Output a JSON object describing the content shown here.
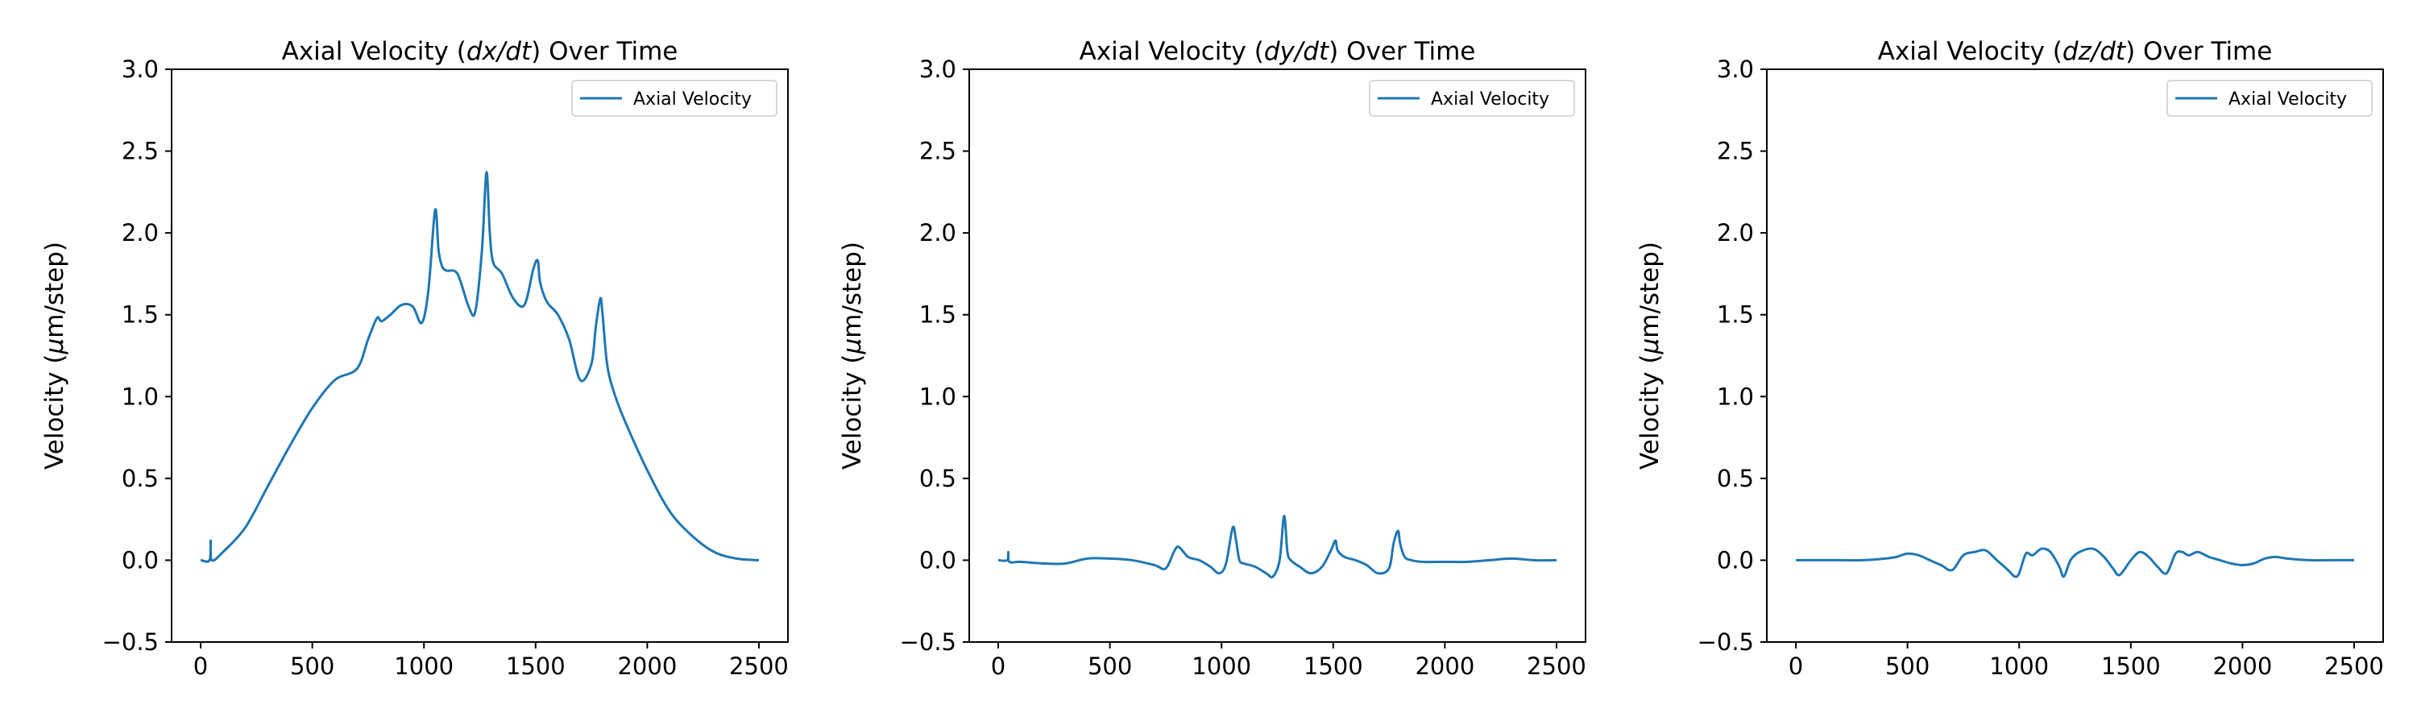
{
  "chart_data": [
    {
      "type": "line",
      "title": "Axial Velocity (dx/dt) Over Time",
      "title_parts": [
        "Axial Velocity (",
        "dx/dt",
        ") Over Time"
      ],
      "xlabel": "",
      "ylabel": "Velocity (μm/step)",
      "ylabel_parts": [
        "Velocity (",
        "μ",
        "m/step)"
      ],
      "xlim": [
        -130,
        2630
      ],
      "ylim": [
        -0.5,
        3.0
      ],
      "xticks": [
        0,
        500,
        1000,
        1500,
        2000,
        2500
      ],
      "yticks": [
        -0.5,
        0.0,
        0.5,
        1.0,
        1.5,
        2.0,
        2.5,
        3.0
      ],
      "xtick_labels": [
        "0",
        "500",
        "1000",
        "1500",
        "2000",
        "2500"
      ],
      "ytick_labels": [
        "−0.5",
        "0.0",
        "0.5",
        "1.0",
        "1.5",
        "2.0",
        "2.5",
        "3.0"
      ],
      "grid": false,
      "legend": "top-right",
      "series": [
        {
          "name": "Axial Velocity",
          "color": "#1f77b4",
          "x": [
            0,
            40,
            45,
            50,
            100,
            200,
            300,
            400,
            500,
            600,
            700,
            750,
            790,
            810,
            850,
            900,
            950,
            990,
            1020,
            1050,
            1065,
            1080,
            1100,
            1150,
            1200,
            1230,
            1260,
            1280,
            1295,
            1310,
            1350,
            1400,
            1450,
            1490,
            1510,
            1520,
            1550,
            1600,
            1650,
            1700,
            1750,
            1770,
            1790,
            1800,
            1820,
            1850,
            1900,
            2000,
            2100,
            2200,
            2300,
            2400,
            2500
          ],
          "y": [
            0.0,
            0.0,
            0.12,
            0.0,
            0.05,
            0.2,
            0.45,
            0.7,
            0.93,
            1.1,
            1.17,
            1.35,
            1.48,
            1.46,
            1.5,
            1.56,
            1.55,
            1.45,
            1.65,
            2.14,
            1.9,
            1.8,
            1.77,
            1.75,
            1.55,
            1.52,
            1.9,
            2.37,
            2.0,
            1.82,
            1.75,
            1.6,
            1.56,
            1.78,
            1.83,
            1.7,
            1.58,
            1.5,
            1.35,
            1.1,
            1.2,
            1.43,
            1.6,
            1.5,
            1.2,
            1.03,
            0.85,
            0.55,
            0.3,
            0.15,
            0.05,
            0.01,
            0.0
          ]
        }
      ]
    },
    {
      "type": "line",
      "title": "Axial Velocity (dy/dt) Over Time",
      "title_parts": [
        "Axial Velocity (",
        "dy/dt",
        ") Over Time"
      ],
      "xlabel": "",
      "ylabel": "Velocity (μm/step)",
      "ylabel_parts": [
        "Velocity (",
        "μ",
        "m/step)"
      ],
      "xlim": [
        -130,
        2630
      ],
      "ylim": [
        -0.5,
        3.0
      ],
      "xticks": [
        0,
        500,
        1000,
        1500,
        2000,
        2500
      ],
      "yticks": [
        -0.5,
        0.0,
        0.5,
        1.0,
        1.5,
        2.0,
        2.5,
        3.0
      ],
      "xtick_labels": [
        "0",
        "500",
        "1000",
        "1500",
        "2000",
        "2500"
      ],
      "ytick_labels": [
        "−0.5",
        "0.0",
        "0.5",
        "1.0",
        "1.5",
        "2.0",
        "2.5",
        "3.0"
      ],
      "grid": false,
      "legend": "top-right",
      "series": [
        {
          "name": "Axial Velocity",
          "color": "#1f77b4",
          "x": [
            0,
            40,
            45,
            50,
            100,
            200,
            300,
            400,
            500,
            600,
            700,
            750,
            790,
            810,
            850,
            900,
            950,
            990,
            1020,
            1050,
            1065,
            1080,
            1100,
            1150,
            1200,
            1230,
            1260,
            1280,
            1295,
            1310,
            1350,
            1400,
            1450,
            1490,
            1510,
            1520,
            1550,
            1600,
            1650,
            1700,
            1750,
            1770,
            1790,
            1800,
            1820,
            1850,
            1900,
            2000,
            2100,
            2200,
            2300,
            2400,
            2500
          ],
          "y": [
            0.0,
            0.0,
            0.05,
            -0.01,
            -0.01,
            -0.02,
            -0.02,
            0.01,
            0.01,
            0.0,
            -0.03,
            -0.05,
            0.06,
            0.08,
            0.02,
            0.0,
            -0.04,
            -0.08,
            -0.02,
            0.2,
            0.12,
            0.0,
            -0.02,
            -0.04,
            -0.08,
            -0.1,
            0.0,
            0.27,
            0.05,
            0.0,
            -0.04,
            -0.08,
            -0.04,
            0.06,
            0.12,
            0.06,
            0.02,
            0.0,
            -0.03,
            -0.08,
            -0.05,
            0.1,
            0.18,
            0.1,
            0.02,
            0.0,
            -0.01,
            -0.01,
            -0.01,
            0.0,
            0.01,
            0.0,
            0.0
          ]
        }
      ]
    },
    {
      "type": "line",
      "title": "Axial Velocity (dz/dt) Over Time",
      "title_parts": [
        "Axial Velocity (",
        "dz/dt",
        ") Over Time"
      ],
      "xlabel": "",
      "ylabel": "Velocity (μm/step)",
      "ylabel_parts": [
        "Velocity (",
        "μ",
        "m/step)"
      ],
      "xlim": [
        -130,
        2630
      ],
      "ylim": [
        -0.5,
        3.0
      ],
      "xticks": [
        0,
        500,
        1000,
        1500,
        2000,
        2500
      ],
      "yticks": [
        -0.5,
        0.0,
        0.5,
        1.0,
        1.5,
        2.0,
        2.5,
        3.0
      ],
      "xtick_labels": [
        "0",
        "500",
        "1000",
        "1500",
        "2000",
        "2500"
      ],
      "ytick_labels": [
        "−0.5",
        "0.0",
        "0.5",
        "1.0",
        "1.5",
        "2.0",
        "2.5",
        "3.0"
      ],
      "grid": false,
      "legend": "top-right",
      "series": [
        {
          "name": "Axial Velocity",
          "color": "#1f77b4",
          "x": [
            0,
            100,
            200,
            300,
            400,
            450,
            500,
            550,
            600,
            650,
            700,
            750,
            800,
            850,
            900,
            950,
            980,
            1000,
            1030,
            1060,
            1100,
            1140,
            1180,
            1200,
            1230,
            1270,
            1330,
            1380,
            1420,
            1450,
            1500,
            1540,
            1580,
            1620,
            1660,
            1700,
            1730,
            1760,
            1800,
            1850,
            1900,
            1950,
            2000,
            2050,
            2100,
            2150,
            2200,
            2300,
            2400,
            2500
          ],
          "y": [
            0.0,
            0.0,
            0.0,
            0.0,
            0.01,
            0.02,
            0.04,
            0.03,
            0.0,
            -0.03,
            -0.06,
            0.03,
            0.05,
            0.06,
            0.0,
            -0.06,
            -0.1,
            -0.08,
            0.04,
            0.03,
            0.07,
            0.05,
            -0.04,
            -0.1,
            0.0,
            0.05,
            0.07,
            0.02,
            -0.05,
            -0.09,
            0.0,
            0.05,
            0.02,
            -0.04,
            -0.08,
            0.04,
            0.05,
            0.03,
            0.05,
            0.02,
            0.0,
            -0.02,
            -0.03,
            -0.02,
            0.01,
            0.02,
            0.01,
            0.0,
            0.0,
            0.0
          ]
        }
      ]
    }
  ]
}
